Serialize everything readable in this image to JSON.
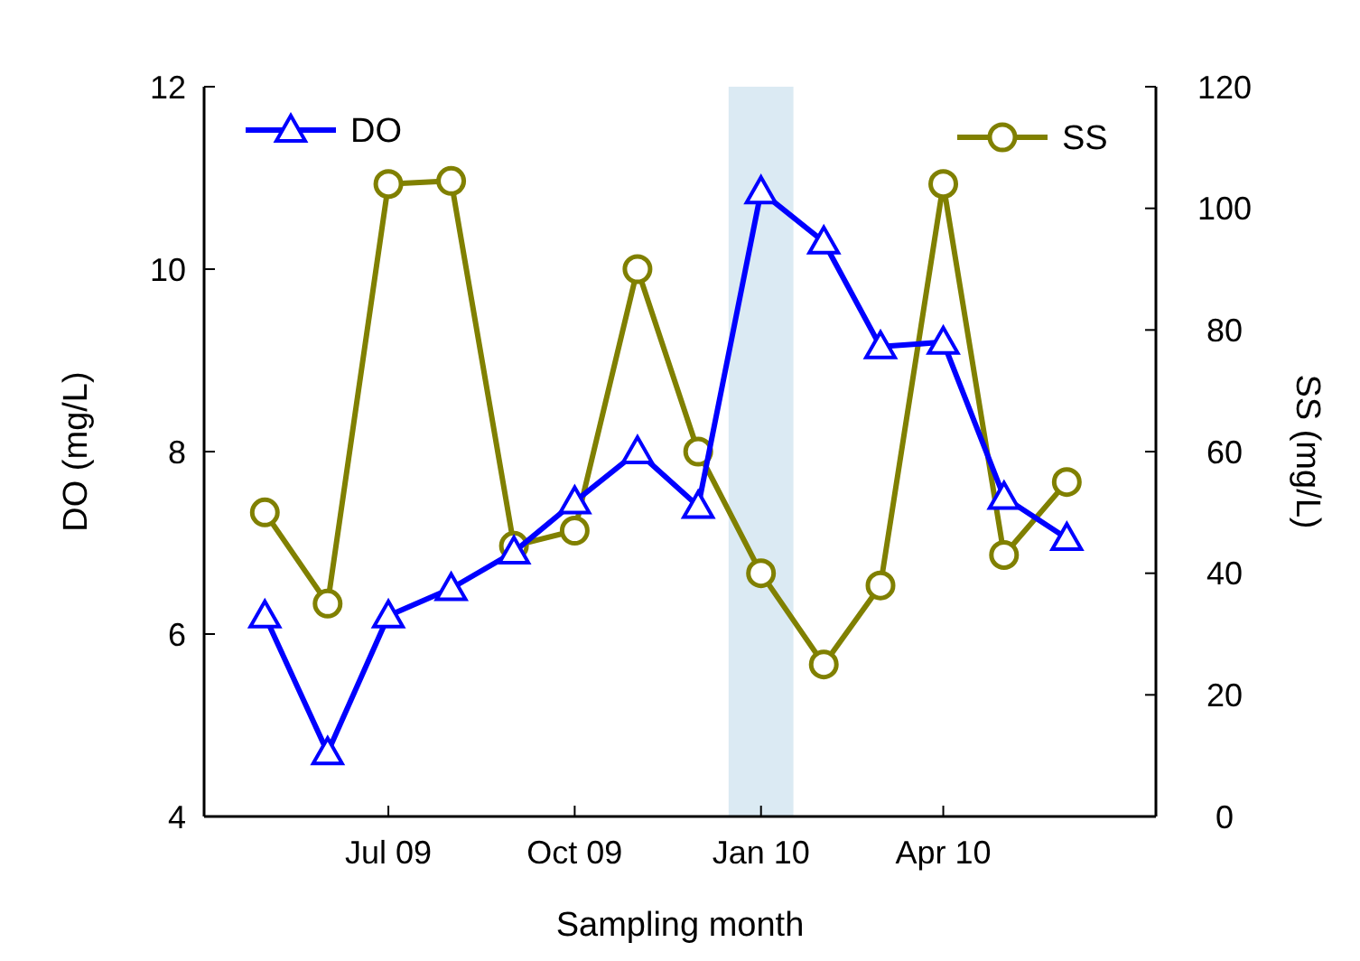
{
  "chart_data": {
    "type": "line",
    "xlabel": "Sampling month",
    "ylabel": "DO (mg/L)",
    "y2label": "SS (mg/L)",
    "x": [
      "2009-05",
      "2009-06",
      "2009-07",
      "2009-08",
      "2009-09",
      "2009-10",
      "2009-11",
      "2009-12",
      "2010-01",
      "2010-02",
      "2010-03",
      "2010-04",
      "2010-05",
      "2010-06"
    ],
    "series": [
      {
        "name": "DO",
        "color": "#0000ff",
        "marker": "triangle",
        "values": [
          6.2,
          4.7,
          6.2,
          6.5,
          6.9,
          7.45,
          8.0,
          7.4,
          10.85,
          10.3,
          9.15,
          9.2,
          7.5,
          7.05
        ]
      },
      {
        "name": "SS",
        "color": "#808000",
        "marker": "circle",
        "axis": "y2",
        "values": [
          50,
          35,
          104,
          104.5,
          44.5,
          47,
          90,
          60,
          40,
          25,
          38,
          104,
          43,
          55
        ]
      }
    ],
    "xlim": [
      "2009-04",
      "2010-07-15"
    ],
    "xticks": [
      {
        "value": "2009-07",
        "label": "Jul 09"
      },
      {
        "value": "2009-10",
        "label": "Oct 09"
      },
      {
        "value": "2010-01",
        "label": "Jan 10"
      },
      {
        "value": "2010-04",
        "label": "Apr 10"
      }
    ],
    "ylim": [
      4,
      12
    ],
    "yticks": [
      4,
      6,
      8,
      10,
      12
    ],
    "y2lim": [
      0,
      120
    ],
    "y2ticks": [
      0,
      20,
      40,
      60,
      80,
      100,
      120
    ],
    "bands": [
      {
        "axis": "x",
        "from": "2009-12-16",
        "to": "2010-01-17",
        "color": "#dbeaf3"
      }
    ],
    "legend": "top",
    "grid": false
  }
}
